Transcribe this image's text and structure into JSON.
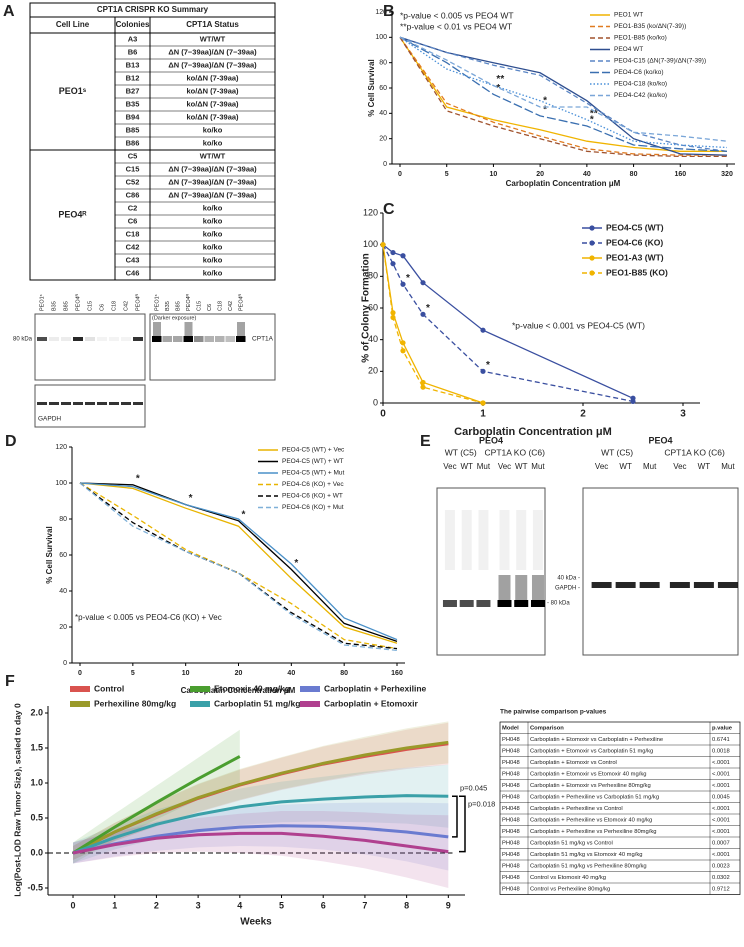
{
  "panel_labels": [
    "A",
    "B",
    "C",
    "D",
    "E",
    "F"
  ],
  "table_a": {
    "title": "CPT1A CRISPR KO Summary",
    "headers": [
      "Cell Line",
      "Colonies",
      "CPT1A Status"
    ],
    "groups": [
      {
        "cell_line": "PEO1ˢ",
        "rows": [
          [
            "A3",
            "WT/WT"
          ],
          [
            "B6",
            "ΔN (7−39aa)/ΔN (7−39aa)"
          ],
          [
            "B13",
            "ΔN (7−39aa)/ΔN (7−39aa)"
          ],
          [
            "B12",
            "ko/ΔN (7-39aa)"
          ],
          [
            "B27",
            "ko/ΔN (7-39aa)"
          ],
          [
            "B35",
            "ko/ΔN (7-39aa)"
          ],
          [
            "B94",
            "ko/ΔN (7-39aa)"
          ],
          [
            "B85",
            "ko/ko"
          ],
          [
            "B86",
            "ko/ko"
          ]
        ]
      },
      {
        "cell_line": "PEO4ᴿ",
        "rows": [
          [
            "C5",
            "WT/WT"
          ],
          [
            "C15",
            "ΔN (7−39aa)/ΔN (7−39aa)"
          ],
          [
            "C52",
            "ΔN (7−39aa)/ΔN (7−39aa)"
          ],
          [
            "C86",
            "ΔN (7−39aa)/ΔN (7−39aa)"
          ],
          [
            "C2",
            "ko/ko"
          ],
          [
            "C6",
            "ko/ko"
          ],
          [
            "C18",
            "ko/ko"
          ],
          [
            "C42",
            "ko/ko"
          ],
          [
            "C43",
            "ko/ko"
          ],
          [
            "C46",
            "ko/ko"
          ]
        ]
      }
    ]
  },
  "blot_a": {
    "lanes": [
      "PEO1ˢ",
      "B35",
      "B85",
      "PEO4ᴿ",
      "C15",
      "C6",
      "C18",
      "C42",
      "PEO4ᴿ"
    ],
    "darker_label": "(Darker exposure)",
    "marker": "80 kDa",
    "target": "CPT1A",
    "loading": "GAPDH"
  },
  "blot_e": {
    "title": "PEO4",
    "groups": [
      "WT (C5)",
      "CPT1A KO (C6)"
    ],
    "lanes": [
      "Vec",
      "WT",
      "Mut",
      "Vec",
      "WT",
      "Mut"
    ],
    "marker_left": "- 80 kDa",
    "marker_right": "40 kDa -",
    "loading": "GAPDH -"
  },
  "chart_data": [
    {
      "type": "line",
      "ylabel": "% Cell Survival",
      "xlabel": "Carboplatin Concentration μM",
      "categories": [
        "0",
        "5",
        "10",
        "20",
        "40",
        "80",
        "160",
        "320"
      ],
      "ylim": [
        0,
        120
      ],
      "yticks": [
        0,
        20,
        40,
        60,
        80,
        100,
        120
      ],
      "legend": "upper right",
      "annotations": [
        "*p-value < 0.005 vs PEO4 WT",
        "**p-value < 0.01 vs PEO4 WT"
      ],
      "series": [
        {
          "name": "PEO1 WT",
          "color": "#f0b400",
          "style": "solid",
          "values": [
            100,
            45,
            35,
            27,
            18,
            13,
            10,
            10
          ]
        },
        {
          "name": "PEO1-B35 (ko/ΔN(7-39))",
          "color": "#e07b20",
          "style": "dashed",
          "values": [
            100,
            48,
            33,
            22,
            12,
            8,
            7,
            7
          ]
        },
        {
          "name": "PEO1-B85 (ko/ko)",
          "color": "#a0522d",
          "style": "dashed",
          "values": [
            100,
            42,
            30,
            20,
            10,
            7,
            6,
            6
          ]
        },
        {
          "name": "PEO4 WT",
          "color": "#2e4e8f",
          "style": "solid",
          "values": [
            100,
            88,
            80,
            72,
            50,
            20,
            8,
            7
          ]
        },
        {
          "name": "PEO4-C15 (ΔN(7-39)/ΔN(7-39))",
          "color": "#5b86c5",
          "style": "dashed",
          "values": [
            100,
            88,
            78,
            70,
            48,
            25,
            15,
            10
          ]
        },
        {
          "name": "PEO4-C6 (ko/ko)",
          "color": "#3a6fb0",
          "style": "longdash",
          "values": [
            100,
            80,
            55,
            38,
            30,
            15,
            12,
            10
          ],
          "significance": [
            null,
            null,
            "*",
            "*",
            "*",
            null,
            null,
            null
          ]
        },
        {
          "name": "PEO4-C18 (ko/ko)",
          "color": "#4a90d9",
          "style": "dotted",
          "values": [
            100,
            75,
            62,
            50,
            35,
            18,
            15,
            13
          ],
          "significance": [
            null,
            null,
            "**",
            null,
            "**",
            null,
            null,
            null
          ]
        },
        {
          "name": "PEO4-C42 (ko/ko)",
          "color": "#7aa6d8",
          "style": "dashed",
          "values": [
            100,
            82,
            62,
            45,
            45,
            25,
            22,
            18
          ],
          "significance": [
            null,
            null,
            null,
            "*",
            null,
            null,
            null,
            null
          ]
        }
      ]
    },
    {
      "type": "line",
      "ylabel": "% of Colony Formation",
      "xlabel": "Carboplatin Concentration μM",
      "xlim": [
        0,
        3
      ],
      "xticks": [
        0,
        1,
        2,
        3
      ],
      "ylim": [
        0,
        120
      ],
      "yticks": [
        0,
        20,
        40,
        60,
        80,
        100,
        120
      ],
      "legend": "upper right",
      "markers": true,
      "annotations": [
        "*p-value < 0.001 vs PEO4-C5 (WT)"
      ],
      "series": [
        {
          "name": "PEO4-C5 (WT)",
          "color": "#3a4fa0",
          "style": "solid",
          "x": [
            0,
            0.1,
            0.2,
            0.4,
            1,
            2.5
          ],
          "values": [
            100,
            95,
            93,
            76,
            46,
            3
          ]
        },
        {
          "name": "PEO4-C6 (KO)",
          "color": "#3a4fa0",
          "style": "dashed",
          "x": [
            0,
            0.1,
            0.2,
            0.4,
            1,
            2.5
          ],
          "values": [
            100,
            88,
            75,
            56,
            20,
            1
          ],
          "significance": [
            null,
            null,
            "*",
            "*",
            "*",
            null
          ]
        },
        {
          "name": "PEO1-A3 (WT)",
          "color": "#f0b400",
          "style": "solid",
          "x": [
            0,
            0.1,
            0.2,
            0.4,
            1
          ],
          "values": [
            100,
            57,
            38,
            13,
            0
          ]
        },
        {
          "name": "PEO1-B85 (KO)",
          "color": "#f0b400",
          "style": "dashed",
          "x": [
            0,
            0.1,
            0.2,
            0.4,
            1
          ],
          "values": [
            100,
            54,
            33,
            10,
            0
          ]
        }
      ]
    },
    {
      "type": "line",
      "ylabel": "% Cell Survival",
      "xlabel": "Carboplatin Concentration μM",
      "categories": [
        "0",
        "5",
        "10",
        "20",
        "40",
        "80",
        "160"
      ],
      "ylim": [
        0,
        120
      ],
      "yticks": [
        0,
        20,
        40,
        60,
        80,
        100,
        120
      ],
      "legend": "upper right",
      "annotations": [
        "*p-value < 0.005 vs PEO4-C6 (KO) + Vec"
      ],
      "series": [
        {
          "name": "PEO4-C5 (WT) + Vec",
          "color": "#e8b400",
          "style": "solid",
          "values": [
            100,
            97,
            86,
            76,
            47,
            20,
            11
          ]
        },
        {
          "name": "PEO4-C5 (WT) + WT",
          "color": "#000000",
          "style": "solid",
          "values": [
            100,
            99,
            88,
            79,
            52,
            22,
            12
          ],
          "significance": [
            null,
            "*",
            "*",
            "*",
            "*",
            null,
            null
          ]
        },
        {
          "name": "PEO4-C5 (WT) + Mut",
          "color": "#4a90c8",
          "style": "solid",
          "values": [
            100,
            98,
            88,
            80,
            55,
            25,
            13
          ]
        },
        {
          "name": "PEO4-C6 (KO) + Vec",
          "color": "#e8b400",
          "style": "dashed",
          "values": [
            100,
            82,
            63,
            50,
            33,
            13,
            8
          ]
        },
        {
          "name": "PEO4-C6 (KO) + WT",
          "color": "#000000",
          "style": "dashed",
          "values": [
            100,
            78,
            62,
            50,
            28,
            11,
            8
          ]
        },
        {
          "name": "PEO4-C6 (KO) + Mut",
          "color": "#7fb0d8",
          "style": "dashed",
          "values": [
            100,
            76,
            62,
            50,
            27,
            10,
            7
          ]
        }
      ]
    },
    {
      "type": "line",
      "ylabel": "Log(Post-LOD Raw Tumor Size), scaled to day 0",
      "xlabel": "Weeks",
      "x": [
        0,
        1,
        2,
        3,
        4,
        5,
        6,
        7,
        8,
        9
      ],
      "xlim": [
        -0.6,
        9.4
      ],
      "xticks": [
        0,
        1,
        2,
        3,
        4,
        5,
        6,
        7,
        8,
        9
      ],
      "ylim": [
        -0.6,
        2.1
      ],
      "yticks": [
        -0.5,
        {
          "value": 0,
          "label": "0.0"
        },
        0.5,
        {
          "value": 1,
          "label": "1.0"
        },
        1.5,
        {
          "value": 2,
          "label": "2.0"
        }
      ],
      "reference_line": 0,
      "legend": "top",
      "bands": true,
      "annotations": [
        "p=0.045",
        "p=0.018"
      ],
      "series": [
        {
          "name": "Control",
          "color": "#d9534f",
          "values": [
            0,
            0.3,
            0.55,
            0.78,
            0.97,
            1.13,
            1.27,
            1.38,
            1.48,
            1.56
          ],
          "lower": [
            -0.1,
            0.17,
            0.38,
            0.58,
            0.75,
            0.9,
            1.02,
            1.12,
            1.2,
            1.26
          ],
          "upper": [
            0.1,
            0.43,
            0.72,
            0.98,
            1.19,
            1.36,
            1.52,
            1.64,
            1.76,
            1.86
          ]
        },
        {
          "name": "Perhexiline 80mg/kg",
          "color": "#9a9a2a",
          "values": [
            0,
            0.3,
            0.56,
            0.79,
            0.98,
            1.14,
            1.28,
            1.4,
            1.5,
            1.58
          ],
          "lower": [
            -0.1,
            0.17,
            0.39,
            0.59,
            0.76,
            0.91,
            1.03,
            1.14,
            1.22,
            1.28
          ],
          "upper": [
            0.1,
            0.43,
            0.73,
            0.99,
            1.2,
            1.37,
            1.53,
            1.66,
            1.78,
            1.88
          ]
        },
        {
          "name": "Etomoxir 40 mg/kg",
          "color": "#4a9e2f",
          "values": [
            0,
            0.37,
            0.72,
            1.06,
            1.38,
            null,
            null,
            null,
            null,
            null
          ],
          "lower": [
            -0.15,
            0.18,
            0.48,
            0.76,
            1.0,
            null,
            null,
            null,
            null,
            null
          ],
          "upper": [
            0.15,
            0.56,
            0.96,
            1.36,
            1.76,
            null,
            null,
            null,
            null,
            null
          ]
        },
        {
          "name": "Carboplatin 51 mg/kg",
          "color": "#3aa0a8",
          "values": [
            0,
            0.22,
            0.41,
            0.55,
            0.66,
            0.73,
            0.77,
            0.8,
            0.82,
            0.81
          ],
          "lower": [
            -0.15,
            0.05,
            0.2,
            0.32,
            0.4,
            0.44,
            0.45,
            0.44,
            0.42,
            0.36
          ],
          "upper": [
            0.15,
            0.39,
            0.62,
            0.78,
            0.92,
            1.02,
            1.09,
            1.16,
            1.22,
            1.26
          ]
        },
        {
          "name": "Carboplatin + Perhexiline",
          "color": "#6a7bd0",
          "values": [
            0,
            0.13,
            0.24,
            0.32,
            0.37,
            0.39,
            0.38,
            0.35,
            0.3,
            0.23
          ],
          "lower": [
            -0.15,
            -0.05,
            0.03,
            0.08,
            0.1,
            0.09,
            0.05,
            -0.02,
            -0.12,
            -0.25
          ],
          "upper": [
            0.15,
            0.31,
            0.45,
            0.56,
            0.64,
            0.69,
            0.71,
            0.72,
            0.72,
            0.71
          ]
        },
        {
          "name": "Carboplatin + Etomoxir",
          "color": "#b0408f",
          "values": [
            0,
            0.12,
            0.21,
            0.26,
            0.28,
            0.28,
            0.24,
            0.18,
            0.1,
            0.02
          ],
          "lower": [
            -0.15,
            -0.06,
            0.0,
            0.02,
            0.0,
            -0.04,
            -0.12,
            -0.22,
            -0.35,
            -0.5
          ],
          "upper": [
            0.15,
            0.3,
            0.42,
            0.5,
            0.56,
            0.6,
            0.6,
            0.58,
            0.55,
            0.54
          ]
        }
      ]
    }
  ],
  "table_f": {
    "title": "The pairwise comparison p-values",
    "headers": [
      "Model",
      "Comparison",
      "p.value"
    ],
    "rows": [
      [
        "PH048",
        "Carboplatin + Etomoxir vs Carboplatin + Perhexiline",
        "0.6741"
      ],
      [
        "PH048",
        "Carboplatin + Etomoxir vs Carboplatin 51 mg/kg",
        "0.0018"
      ],
      [
        "PH048",
        "Carboplatin + Etomoxir vs Control",
        "<.0001"
      ],
      [
        "PH048",
        "Carboplatin + Etomoxir vs Etomoxir 40 mg/kg",
        "<.0001"
      ],
      [
        "PH048",
        "Carboplatin + Etomoxir vs Perhexiline 80mg/kg",
        "<.0001"
      ],
      [
        "PH048",
        "Carboplatin + Perhexiline vs Carboplatin 51 mg/kg",
        "0.0045"
      ],
      [
        "PH048",
        "Carboplatin + Perhexiline vs Control",
        "<.0001"
      ],
      [
        "PH048",
        "Carboplatin + Perhexiline vs Etomoxir 40 mg/kg",
        "<.0001"
      ],
      [
        "PH048",
        "Carboplatin + Perhexiline vs Perhexiline 80mg/kg",
        "<.0001"
      ],
      [
        "PH048",
        "Carboplatin 51 mg/kg vs Control",
        "0.0007"
      ],
      [
        "PH048",
        "Carboplatin 51 mg/kg vs Etomoxir 40 mg/kg",
        "<.0001"
      ],
      [
        "PH048",
        "Carboplatin 51 mg/kg vs Perhexiline 80mg/kg",
        "0.0023"
      ],
      [
        "PH048",
        "Control vs Etomoxir 40 mg/kg",
        "0.0302"
      ],
      [
        "PH048",
        "Control vs Perhexiline 80mg/kg",
        "0.9712"
      ]
    ]
  }
}
